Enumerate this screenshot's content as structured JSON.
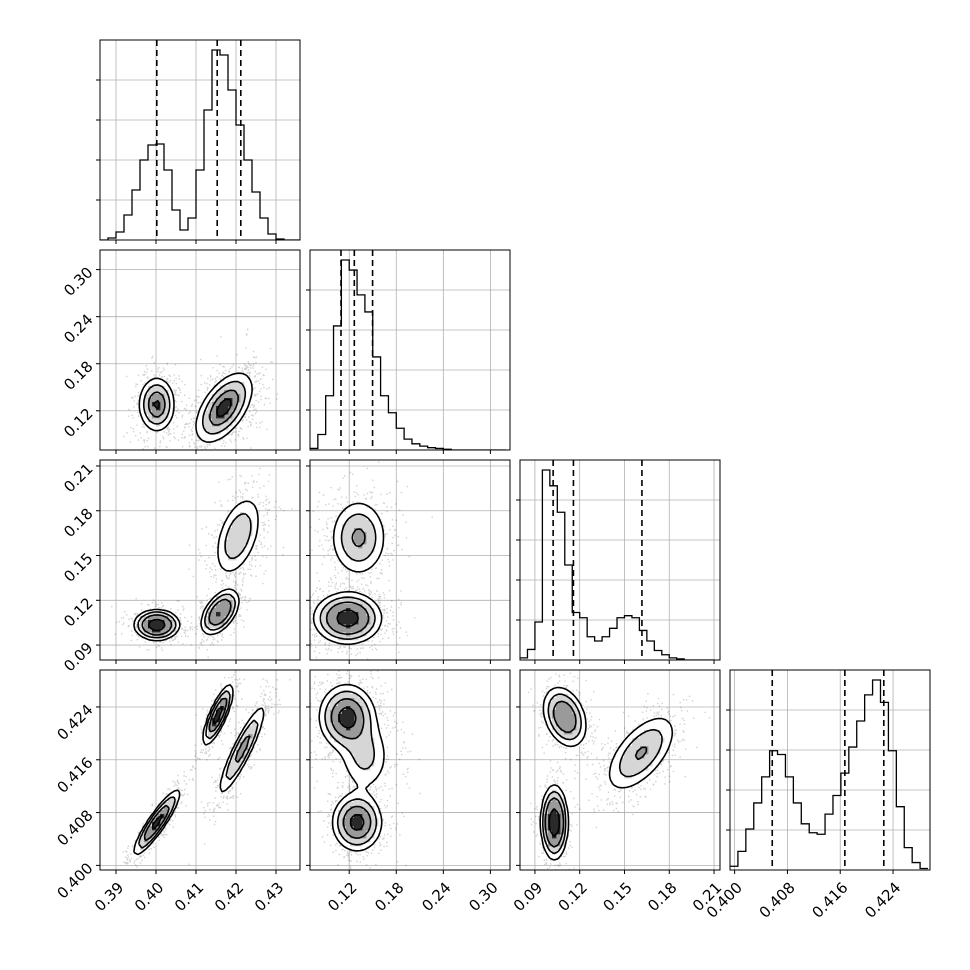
{
  "chart_data": {
    "type": "corner",
    "n_params": 4,
    "parameters": [
      {
        "index": 0,
        "range": [
          0.386,
          0.436
        ],
        "ticks": [
          0.39,
          0.4,
          0.41,
          0.42,
          0.43
        ],
        "tick_labels": [
          "0.39",
          "0.40",
          "0.41",
          "0.42",
          "0.43"
        ]
      },
      {
        "index": 1,
        "range": [
          0.07,
          0.325
        ],
        "ticks": [
          0.12,
          0.18,
          0.24,
          0.3
        ],
        "tick_labels": [
          "0.12",
          "0.18",
          "0.24",
          "0.30"
        ]
      },
      {
        "index": 2,
        "range": [
          0.08,
          0.214
        ],
        "ticks": [
          0.09,
          0.12,
          0.15,
          0.18,
          0.21
        ],
        "tick_labels": [
          "0.09",
          "0.12",
          "0.15",
          "0.18",
          "0.21"
        ]
      },
      {
        "index": 3,
        "range": [
          0.3993,
          0.4296
        ],
        "ticks": [
          0.4,
          0.408,
          0.416,
          0.424
        ],
        "tick_labels": [
          "0.400",
          "0.408",
          "0.416",
          "0.424"
        ]
      }
    ],
    "histograms": [
      {
        "param": 0,
        "bin_edges": [
          0.386,
          0.388,
          0.39,
          0.392,
          0.394,
          0.396,
          0.398,
          0.4,
          0.402,
          0.404,
          0.406,
          0.408,
          0.41,
          0.412,
          0.414,
          0.416,
          0.418,
          0.42,
          0.422,
          0.424,
          0.426,
          0.428,
          0.43,
          0.432,
          0.434,
          0.436
        ],
        "counts": [
          0,
          2,
          8,
          25,
          50,
          80,
          95,
          96,
          70,
          30,
          10,
          22,
          70,
          130,
          190,
          185,
          150,
          115,
          80,
          48,
          22,
          6,
          1,
          0,
          0
        ],
        "quantiles": [
          0.4002,
          0.4153,
          0.4212
        ]
      },
      {
        "param": 1,
        "bin_edges": [
          0.07,
          0.08,
          0.09,
          0.1,
          0.11,
          0.12,
          0.13,
          0.14,
          0.15,
          0.16,
          0.17,
          0.18,
          0.19,
          0.2,
          0.21,
          0.22,
          0.23,
          0.24,
          0.25,
          0.26,
          0.27,
          0.28,
          0.29,
          0.3,
          0.31,
          0.32
        ],
        "counts": [
          2,
          20,
          70,
          160,
          245,
          232,
          200,
          178,
          120,
          70,
          48,
          28,
          14,
          8,
          5,
          3,
          2,
          1,
          0,
          0,
          0,
          0,
          0,
          0,
          0
        ],
        "quantiles": [
          0.1095,
          0.1265,
          0.1498
        ]
      },
      {
        "param": 2,
        "bin_edges": [
          0.08,
          0.085,
          0.09,
          0.095,
          0.1,
          0.105,
          0.11,
          0.115,
          0.12,
          0.125,
          0.13,
          0.135,
          0.14,
          0.145,
          0.15,
          0.155,
          0.16,
          0.165,
          0.17,
          0.175,
          0.18,
          0.185,
          0.19,
          0.195,
          0.2,
          0.205,
          0.21
        ],
        "counts": [
          2,
          10,
          36,
          180,
          165,
          140,
          90,
          45,
          40,
          22,
          18,
          22,
          30,
          40,
          42,
          40,
          28,
          18,
          9,
          5,
          2,
          1,
          0,
          0,
          0,
          0
        ],
        "quantiles": [
          0.1022,
          0.1158,
          0.1617
        ]
      },
      {
        "param": 3,
        "bin_edges": [
          0.3993,
          0.4005,
          0.4017,
          0.4029,
          0.4041,
          0.4053,
          0.4065,
          0.4077,
          0.4089,
          0.4101,
          0.4113,
          0.4125,
          0.4137,
          0.4149,
          0.4161,
          0.4173,
          0.4185,
          0.4197,
          0.4209,
          0.4221,
          0.4233,
          0.4245,
          0.4257,
          0.4269,
          0.4281,
          0.4293
        ],
        "counts": [
          5,
          25,
          55,
          90,
          125,
          160,
          155,
          125,
          90,
          62,
          50,
          48,
          75,
          100,
          130,
          165,
          200,
          235,
          255,
          225,
          160,
          85,
          30,
          10,
          2
        ],
        "quantiles": [
          0.4057,
          0.4167,
          0.4226
        ]
      }
    ],
    "pair_panels": [
      {
        "row": 1,
        "col": 0,
        "modes": [
          {
            "center": [
              0.4002,
              0.128
            ],
            "sigma": [
              0.0022,
              0.017
            ],
            "rho": 0.0,
            "weight": 0.35
          },
          {
            "center": [
              0.417,
              0.124
            ],
            "sigma": [
              0.0035,
              0.022
            ],
            "rho": 0.55,
            "weight": 0.65
          }
        ]
      },
      {
        "row": 2,
        "col": 0,
        "modes": [
          {
            "center": [
              0.4002,
              0.1035
            ],
            "sigma": [
              0.0025,
              0.0045
            ],
            "rho": 0.0,
            "weight": 0.35
          },
          {
            "center": [
              0.416,
              0.112
            ],
            "sigma": [
              0.0022,
              0.007
            ],
            "rho": 0.5,
            "weight": 0.3
          },
          {
            "center": [
              0.4205,
              0.163
            ],
            "sigma": [
              0.003,
              0.014
            ],
            "rho": 0.45,
            "weight": 0.35
          }
        ]
      },
      {
        "row": 2,
        "col": 1,
        "modes": [
          {
            "center": [
              0.118,
              0.108
            ],
            "sigma": [
              0.02,
              0.008
            ],
            "rho": 0.0,
            "weight": 0.6
          },
          {
            "center": [
              0.132,
              0.162
            ],
            "sigma": [
              0.018,
              0.013
            ],
            "rho": 0.0,
            "weight": 0.4
          }
        ]
      },
      {
        "row": 3,
        "col": 0,
        "modes": [
          {
            "center": [
              0.4002,
              0.4065
            ],
            "sigma": [
              0.0028,
              0.0024
            ],
            "rho": 0.9,
            "weight": 0.35
          },
          {
            "center": [
              0.4155,
              0.4228
            ],
            "sigma": [
              0.0018,
              0.0022
            ],
            "rho": 0.8,
            "weight": 0.3
          },
          {
            "center": [
              0.4215,
              0.4175
            ],
            "sigma": [
              0.003,
              0.0035
            ],
            "rho": 0.9,
            "weight": 0.35
          }
        ]
      },
      {
        "row": 3,
        "col": 1,
        "modes": [
          {
            "center": [
              0.117,
              0.4225
            ],
            "sigma": [
              0.018,
              0.0025
            ],
            "rho": 0.0,
            "weight": 0.45
          },
          {
            "center": [
              0.14,
              0.4165
            ],
            "sigma": [
              0.018,
              0.003
            ],
            "rho": 0.0,
            "weight": 0.2
          },
          {
            "center": [
              0.13,
              0.4065
            ],
            "sigma": [
              0.016,
              0.0022
            ],
            "rho": 0.0,
            "weight": 0.35
          }
        ]
      },
      {
        "row": 3,
        "col": 2,
        "modes": [
          {
            "center": [
              0.11,
              0.4225
            ],
            "sigma": [
              0.007,
              0.0022
            ],
            "rho": -0.3,
            "weight": 0.3
          },
          {
            "center": [
              0.161,
              0.417
            ],
            "sigma": [
              0.012,
              0.003
            ],
            "rho": 0.6,
            "weight": 0.35
          },
          {
            "center": [
              0.103,
              0.4065
            ],
            "sigma": [
              0.004,
              0.0025
            ],
            "rho": 0.0,
            "weight": 0.35
          }
        ]
      }
    ],
    "grid": true,
    "title": "",
    "xlabel": "",
    "ylabel": ""
  }
}
